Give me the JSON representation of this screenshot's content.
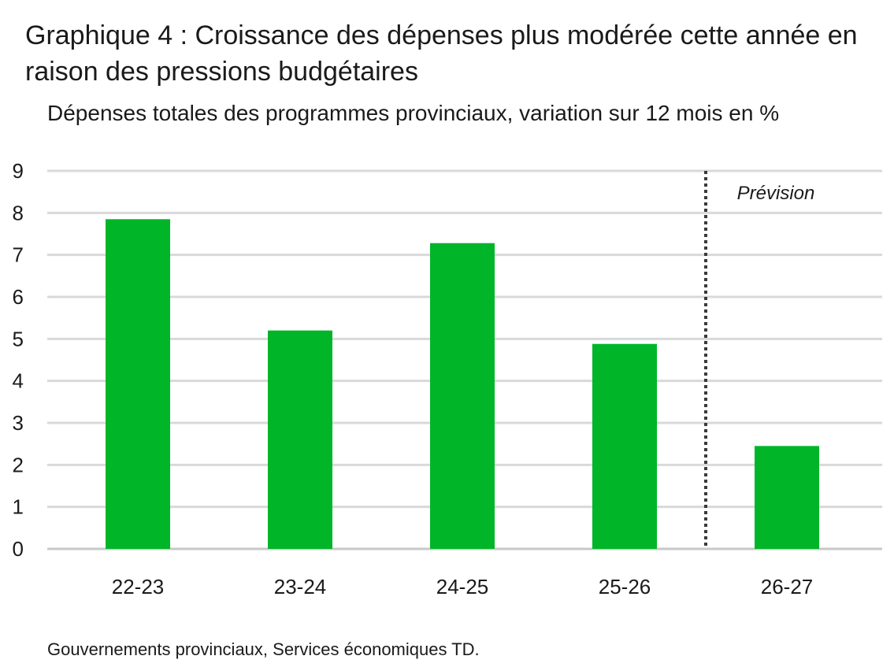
{
  "chart_data": {
    "type": "bar",
    "title": "Graphique 4 : Croissance des dépenses plus modérée cette année en raison des pressions budgétaires",
    "subtitle": "Dépenses totales des programmes provinciaux, variation sur 12 mois en %",
    "categories": [
      "22-23",
      "23-24",
      "24-25",
      "25-26",
      "26-27"
    ],
    "values": [
      7.85,
      5.2,
      7.28,
      4.88,
      2.45
    ],
    "ylim": [
      0,
      9
    ],
    "yticks": [
      "0",
      "1",
      "2",
      "3",
      "4",
      "5",
      "6",
      "7",
      "8",
      "9"
    ],
    "grid": true,
    "legend": "none",
    "bar_color": "#00b528",
    "forecast_start_category": "26-27",
    "annotation": "Prévision",
    "source": "Gouvernements provinciaux, Services économiques TD."
  }
}
